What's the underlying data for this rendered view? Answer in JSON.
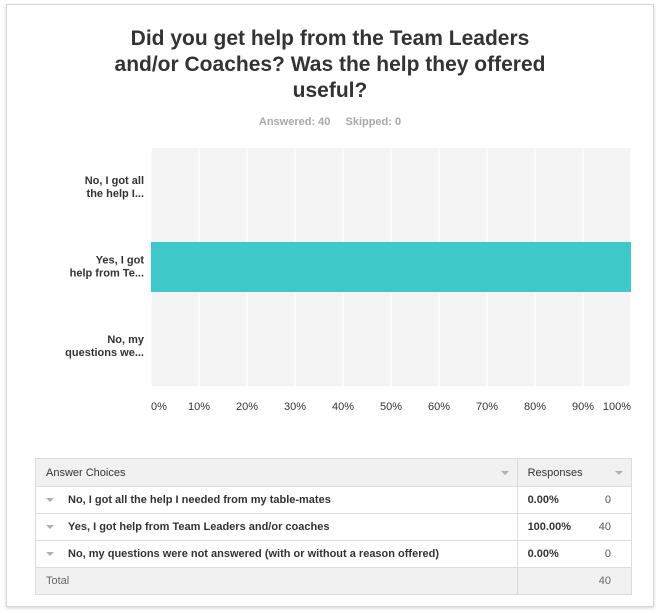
{
  "question": {
    "title_lines": [
      "Did you get help from the Team Leaders",
      "and/or Coaches? Was the help they offered",
      "useful?"
    ],
    "answered": "Answered: 40",
    "skipped": "Skipped: 0"
  },
  "chart_data": {
    "type": "bar",
    "orientation": "horizontal",
    "categories": [
      [
        "No, I got all",
        "the help I..."
      ],
      [
        "Yes, I got",
        "help from Te..."
      ],
      [
        "No, my",
        "questions we..."
      ]
    ],
    "values": [
      0,
      100,
      0
    ],
    "x_ticks": [
      "0%",
      "10%",
      "20%",
      "30%",
      "40%",
      "50%",
      "60%",
      "70%",
      "80%",
      "90%",
      "100%"
    ],
    "xlim": [
      0,
      100
    ],
    "bar_color": "#3ec8c9",
    "grid": true
  },
  "table": {
    "headers": {
      "choices": "Answer Choices",
      "responses": "Responses"
    },
    "rows": [
      {
        "choice": "No, I got all the help I needed from my table-mates",
        "percent": "0.00%",
        "count": "0"
      },
      {
        "choice": "Yes, I got help from Team Leaders and/or coaches",
        "percent": "100.00%",
        "count": "40"
      },
      {
        "choice": "No, my questions were not answered (with or without a reason offered)",
        "percent": "0.00%",
        "count": "0"
      }
    ],
    "total_label": "Total",
    "total_value": "40"
  }
}
